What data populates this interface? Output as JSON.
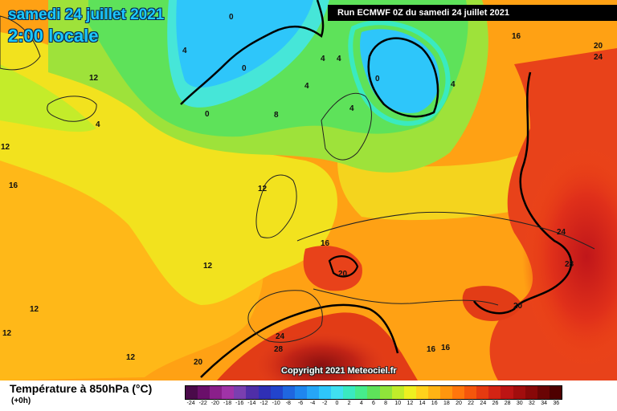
{
  "header": {
    "date_title": "samedi 24 juillet 2021",
    "time_title": "2:00 locale",
    "run_banner": "Run ECMWF 0Z du samedi 24 juillet 2021"
  },
  "map": {
    "copyright": "Copyright 2021 Meteociel.fr",
    "isotherm_labels": [
      {
        "text": "0"
      },
      {
        "text": "4"
      },
      {
        "text": "0"
      },
      {
        "text": "4"
      },
      {
        "text": "4"
      },
      {
        "text": "4"
      },
      {
        "text": "0"
      },
      {
        "text": "12"
      },
      {
        "text": "12"
      },
      {
        "text": "4"
      },
      {
        "text": "0"
      },
      {
        "text": "8"
      },
      {
        "text": "4"
      },
      {
        "text": "4"
      },
      {
        "text": "16"
      },
      {
        "text": "20"
      },
      {
        "text": "24"
      },
      {
        "text": "12"
      },
      {
        "text": "16"
      },
      {
        "text": "12"
      },
      {
        "text": "16"
      },
      {
        "text": "12"
      },
      {
        "text": "20"
      },
      {
        "text": "24"
      },
      {
        "text": "28"
      },
      {
        "text": "12"
      },
      {
        "text": "24"
      },
      {
        "text": "20"
      },
      {
        "text": "28"
      },
      {
        "text": "12"
      },
      {
        "text": "20"
      },
      {
        "text": "16"
      },
      {
        "text": "16"
      }
    ]
  },
  "footer": {
    "title": "Température à 850hPa (°C)",
    "subtitle": "(+0h)",
    "scale": {
      "ticks": [
        "-24",
        "-22",
        "-20",
        "-18",
        "-16",
        "-14",
        "-12",
        "-10",
        "-8",
        "-6",
        "-4",
        "-2",
        "0",
        "2",
        "4",
        "6",
        "8",
        "10",
        "12",
        "14",
        "16",
        "18",
        "20",
        "22",
        "24",
        "26",
        "28",
        "30",
        "32",
        "34",
        "36"
      ],
      "colors": [
        "#4a0a4a",
        "#6a0f6a",
        "#8a1f8a",
        "#a033a8",
        "#7a3fb0",
        "#4f2ea8",
        "#2f2fb5",
        "#2244cc",
        "#1f66e0",
        "#1f86ee",
        "#26a6f6",
        "#2ec6fa",
        "#40e0f0",
        "#3aeac0",
        "#46ec8c",
        "#5ee25a",
        "#8fe43a",
        "#c0ec2a",
        "#eef020",
        "#ffd21c",
        "#ffb414",
        "#ff960e",
        "#ff760c",
        "#f5560c",
        "#e63a10",
        "#d42414",
        "#bc1414",
        "#a20d0d",
        "#880808",
        "#6a0404",
        "#4e0000"
      ]
    }
  }
}
